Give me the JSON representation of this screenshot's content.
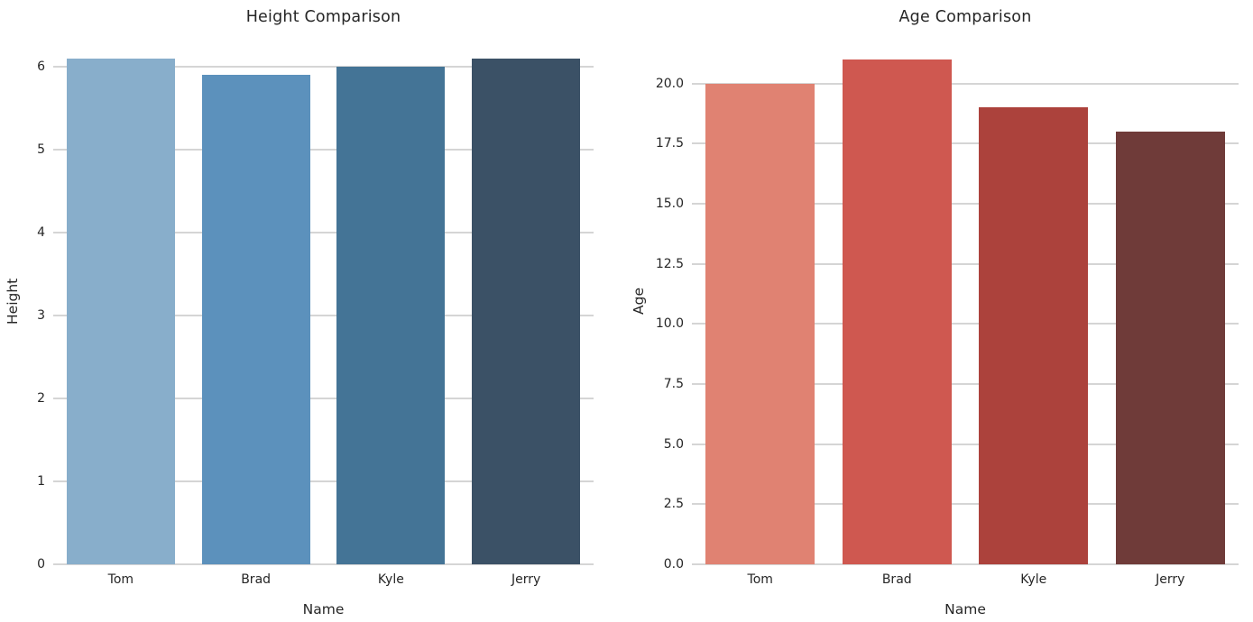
{
  "figure": {
    "background": "#ffffff",
    "text_color": "#262626",
    "grid_color": "#d5d5d5"
  },
  "chart_data": [
    {
      "type": "bar",
      "title": "Height Comparison",
      "xlabel": "Name",
      "ylabel": "Height",
      "categories": [
        "Tom",
        "Brad",
        "Kyle",
        "Jerry"
      ],
      "values": [
        6.1,
        5.9,
        6.0,
        6.1
      ],
      "ylim": [
        0,
        6.35
      ],
      "yticks": [
        0,
        1,
        2,
        3,
        4,
        5,
        6
      ],
      "ytick_labels": [
        "0",
        "1",
        "2",
        "3",
        "4",
        "5",
        "6"
      ],
      "bar_colors": [
        "#88AECB",
        "#5C91BC",
        "#447496",
        "#3B5166"
      ],
      "bar_width_fraction": 0.8,
      "grid": true,
      "legend": null
    },
    {
      "type": "bar",
      "title": "Age Comparison",
      "xlabel": "Name",
      "ylabel": "Age",
      "categories": [
        "Tom",
        "Brad",
        "Kyle",
        "Jerry"
      ],
      "values": [
        20,
        21,
        19,
        18
      ],
      "ylim": [
        0,
        21.9
      ],
      "yticks": [
        0,
        2.5,
        5,
        7.5,
        10,
        12.5,
        15,
        17.5,
        20
      ],
      "ytick_labels": [
        "0.0",
        "2.5",
        "5.0",
        "7.5",
        "10.0",
        "12.5",
        "15.0",
        "17.5",
        "20.0"
      ],
      "bar_colors": [
        "#E08272",
        "#CF5850",
        "#AC423C",
        "#6F3B39"
      ],
      "bar_width_fraction": 0.8,
      "grid": true,
      "legend": null
    }
  ]
}
